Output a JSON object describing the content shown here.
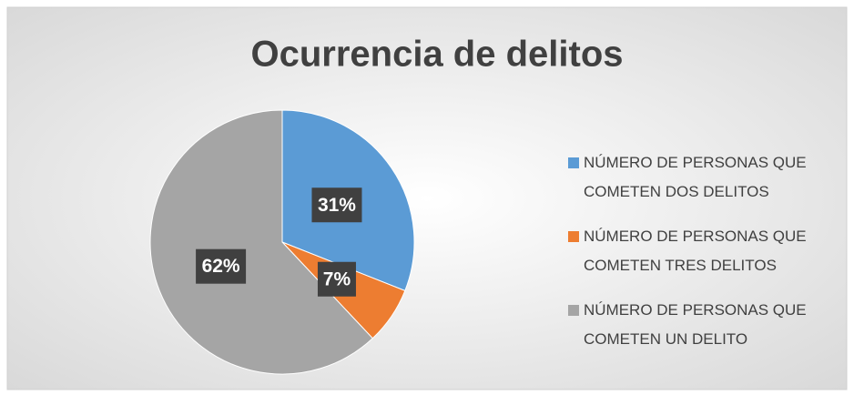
{
  "chart_data": {
    "type": "pie",
    "title": "Ocurrencia de delitos",
    "categories": [
      "NÚMERO DE PERSONAS QUE COMETEN DOS  DELITOS",
      "NÚMERO DE PERSONAS QUE COMETEN TRES DELITOS",
      "NÚMERO DE PERSONAS QUE COMETEN UN DELITO"
    ],
    "values": [
      31,
      7,
      62
    ],
    "value_labels": [
      "31%",
      "7%",
      "62%"
    ],
    "colors": [
      "#5b9bd5",
      "#ed7d31",
      "#a5a5a5"
    ],
    "legend": "right"
  }
}
